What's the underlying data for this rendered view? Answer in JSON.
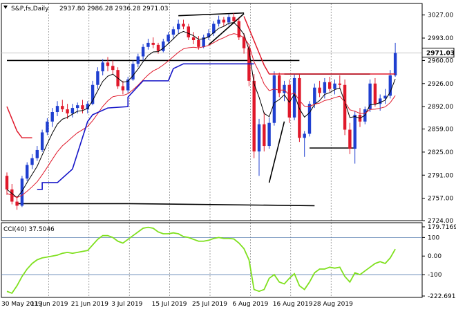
{
  "header": {
    "symbol": "S&P,fs,Daily",
    "ohlc": "2937.80 2986.28 2936.28 2971.03"
  },
  "cci_header": "CCI(40) 37.5046",
  "colors": {
    "bull": "#1f3fd0",
    "bear": "#e0182a",
    "ma_fast": "#000000",
    "ma_slow": "#e0182a",
    "stop": "#1414c8",
    "cci": "#7fe01e",
    "price_box_bg": "#ffffff"
  },
  "chart_data": [
    {
      "type": "candlestick",
      "x_labels": [
        "30 May 2019",
        "11 Jun 2019",
        "21 Jun 2019",
        "3 Jul 2019",
        "15 Jul 2019",
        "25 Jul 2019",
        "6 Aug 2019",
        "16 Aug 2019",
        "28 Aug 2019"
      ],
      "y_ticks": [
        3027.0,
        2993.0,
        2960.0,
        2926.0,
        2892.0,
        2859.0,
        2825.0,
        2791.0,
        2757.0,
        2724.0
      ],
      "ylim": [
        2724,
        3040
      ],
      "last_price": "2971.03",
      "candles": [
        [
          2790,
          2795,
          2762,
          2770
        ],
        [
          2770,
          2778,
          2748,
          2752
        ],
        [
          2752,
          2760,
          2740,
          2746
        ],
        [
          2746,
          2790,
          2744,
          2786
        ],
        [
          2786,
          2810,
          2782,
          2806
        ],
        [
          2806,
          2822,
          2800,
          2816
        ],
        [
          2816,
          2834,
          2812,
          2828
        ],
        [
          2828,
          2858,
          2825,
          2854
        ],
        [
          2854,
          2875,
          2850,
          2870
        ],
        [
          2870,
          2890,
          2862,
          2884
        ],
        [
          2884,
          2900,
          2878,
          2893
        ],
        [
          2893,
          2902,
          2884,
          2888
        ],
        [
          2888,
          2896,
          2874,
          2882
        ],
        [
          2882,
          2896,
          2876,
          2890
        ],
        [
          2890,
          2898,
          2882,
          2894
        ],
        [
          2894,
          2902,
          2882,
          2888
        ],
        [
          2888,
          2900,
          2882,
          2896
        ],
        [
          2896,
          2930,
          2894,
          2924
        ],
        [
          2924,
          2950,
          2918,
          2944
        ],
        [
          2944,
          2962,
          2938,
          2957
        ],
        [
          2957,
          2965,
          2944,
          2952
        ],
        [
          2952,
          2960,
          2940,
          2946
        ],
        [
          2946,
          2950,
          2918,
          2922
        ],
        [
          2922,
          2930,
          2910,
          2916
        ],
        [
          2916,
          2936,
          2912,
          2932
        ],
        [
          2932,
          2960,
          2930,
          2955
        ],
        [
          2955,
          2970,
          2950,
          2966
        ],
        [
          2966,
          2984,
          2960,
          2980
        ],
        [
          2980,
          2992,
          2976,
          2986
        ],
        [
          2986,
          2994,
          2978,
          2983
        ],
        [
          2983,
          2986,
          2970,
          2974
        ],
        [
          2974,
          2992,
          2972,
          2988
        ],
        [
          2988,
          3002,
          2984,
          2998
        ],
        [
          2998,
          3010,
          2992,
          3006
        ],
        [
          3006,
          3020,
          3000,
          3014
        ],
        [
          3014,
          3020,
          3006,
          3010
        ],
        [
          3010,
          3014,
          2990,
          2994
        ],
        [
          2994,
          3002,
          2984,
          2990
        ],
        [
          2990,
          2996,
          2976,
          2980
        ],
        [
          2980,
          2998,
          2978,
          2994
        ],
        [
          2994,
          3006,
          2990,
          3000
        ],
        [
          3000,
          3018,
          2996,
          3014
        ],
        [
          3014,
          3026,
          3010,
          3020
        ],
        [
          3020,
          3024,
          3010,
          3016
        ],
        [
          3016,
          3028,
          3012,
          3024
        ],
        [
          3024,
          3030,
          3014,
          3018
        ],
        [
          3018,
          3022,
          2990,
          2994
        ],
        [
          2994,
          3000,
          2970,
          2978
        ],
        [
          2978,
          2984,
          2922,
          2930
        ],
        [
          2930,
          2940,
          2816,
          2826
        ],
        [
          2826,
          2874,
          2790,
          2866
        ],
        [
          2866,
          2884,
          2826,
          2834
        ],
        [
          2834,
          2876,
          2830,
          2868
        ],
        [
          2868,
          2944,
          2864,
          2938
        ],
        [
          2938,
          2942,
          2906,
          2912
        ],
        [
          2912,
          2930,
          2900,
          2924
        ],
        [
          2924,
          2932,
          2868,
          2876
        ],
        [
          2876,
          2940,
          2872,
          2934
        ],
        [
          2934,
          2940,
          2840,
          2846
        ],
        [
          2846,
          2856,
          2818,
          2852
        ],
        [
          2852,
          2900,
          2848,
          2896
        ],
        [
          2896,
          2926,
          2890,
          2920
        ],
        [
          2920,
          2930,
          2906,
          2912
        ],
        [
          2912,
          2934,
          2904,
          2928
        ],
        [
          2928,
          2936,
          2914,
          2918
        ],
        [
          2918,
          2932,
          2910,
          2926
        ],
        [
          2926,
          2938,
          2918,
          2924
        ],
        [
          2924,
          2932,
          2850,
          2858
        ],
        [
          2858,
          2868,
          2822,
          2830
        ],
        [
          2830,
          2886,
          2808,
          2880
        ],
        [
          2880,
          2890,
          2862,
          2870
        ],
        [
          2870,
          2892,
          2866,
          2888
        ],
        [
          2888,
          2932,
          2884,
          2926
        ],
        [
          2926,
          2934,
          2892,
          2896
        ],
        [
          2896,
          2910,
          2886,
          2904
        ],
        [
          2904,
          2918,
          2896,
          2908
        ],
        [
          2908,
          2946,
          2904,
          2938
        ],
        [
          2938,
          2986,
          2936,
          2971
        ]
      ]
    },
    {
      "type": "line",
      "title": "CCI(40)",
      "y_ticks": [
        "179.7169",
        "100",
        "0.00",
        "-100",
        "-222.6919"
      ],
      "ylim": [
        -222.6919,
        179.7169
      ],
      "last_value": "37.5046",
      "values": [
        -190,
        -200,
        -160,
        -110,
        -70,
        -40,
        -20,
        -10,
        -5,
        0,
        5,
        15,
        20,
        15,
        20,
        25,
        30,
        60,
        90,
        110,
        110,
        100,
        80,
        70,
        90,
        110,
        130,
        150,
        155,
        150,
        130,
        120,
        120,
        125,
        120,
        105,
        100,
        90,
        80,
        80,
        85,
        95,
        100,
        95,
        95,
        92,
        70,
        40,
        -20,
        -180,
        -190,
        -180,
        -120,
        -100,
        -140,
        -150,
        -120,
        -95,
        -160,
        -180,
        -140,
        -90,
        -70,
        -70,
        -60,
        -65,
        -60,
        -110,
        -140,
        -90,
        -100,
        -80,
        -60,
        -40,
        -30,
        -40,
        -10,
        37.5046
      ]
    }
  ]
}
